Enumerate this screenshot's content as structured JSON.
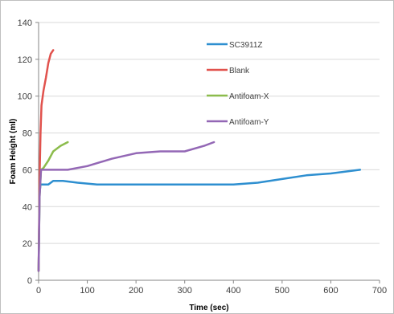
{
  "chart_data": {
    "type": "line",
    "title": "",
    "xlabel": "Time (sec)",
    "ylabel": "Foam Height (ml)",
    "xlim": [
      0,
      700
    ],
    "ylim": [
      0,
      140
    ],
    "xticks": [
      0,
      100,
      200,
      300,
      400,
      500,
      600,
      700
    ],
    "yticks": [
      0,
      20,
      40,
      60,
      80,
      100,
      120,
      140
    ],
    "grid": "horizontal",
    "legend_position": "right",
    "series": [
      {
        "name": "SC3911Z",
        "color": "#2e8fd0",
        "points": [
          [
            0,
            5
          ],
          [
            2,
            47
          ],
          [
            4,
            52
          ],
          [
            10,
            52
          ],
          [
            20,
            52
          ],
          [
            30,
            54
          ],
          [
            50,
            54
          ],
          [
            80,
            53
          ],
          [
            120,
            52
          ],
          [
            200,
            52
          ],
          [
            300,
            52
          ],
          [
            400,
            52
          ],
          [
            450,
            53
          ],
          [
            500,
            55
          ],
          [
            550,
            57
          ],
          [
            600,
            58
          ],
          [
            660,
            60
          ]
        ]
      },
      {
        "name": "Blank",
        "color": "#e1524d",
        "points": [
          [
            0,
            5
          ],
          [
            2,
            55
          ],
          [
            4,
            80
          ],
          [
            6,
            95
          ],
          [
            10,
            103
          ],
          [
            15,
            110
          ],
          [
            20,
            118
          ],
          [
            25,
            123
          ],
          [
            30,
            125
          ]
        ]
      },
      {
        "name": "Antifoam-X",
        "color": "#8cbc4c",
        "points": [
          [
            0,
            5
          ],
          [
            2,
            45
          ],
          [
            5,
            60
          ],
          [
            10,
            61
          ],
          [
            20,
            65
          ],
          [
            30,
            70
          ],
          [
            45,
            73
          ],
          [
            60,
            75
          ]
        ]
      },
      {
        "name": "Antifoam-Y",
        "color": "#9367b5",
        "points": [
          [
            0,
            5
          ],
          [
            2,
            45
          ],
          [
            5,
            60
          ],
          [
            20,
            60
          ],
          [
            60,
            60
          ],
          [
            100,
            62
          ],
          [
            150,
            66
          ],
          [
            200,
            69
          ],
          [
            250,
            70
          ],
          [
            300,
            70
          ],
          [
            340,
            73
          ],
          [
            360,
            75
          ]
        ]
      }
    ]
  }
}
